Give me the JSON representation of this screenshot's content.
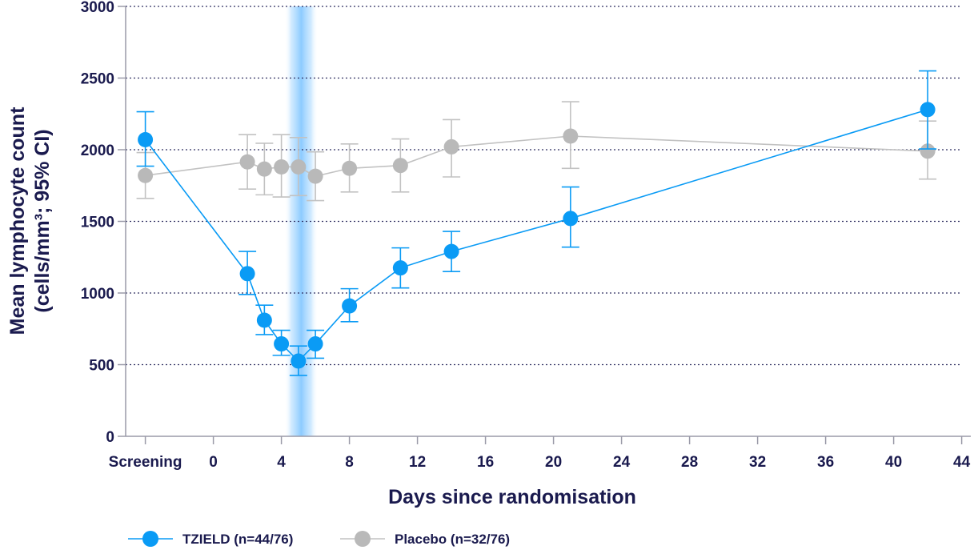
{
  "chart_data": {
    "type": "line",
    "title": "",
    "xlabel": "Days since randomisation",
    "ylabel_line1": "Mean lymphocyte count",
    "ylabel_line2": "(cells/mm³; 95% CI)",
    "xlim": [
      -6,
      44
    ],
    "ylim": [
      0,
      3000
    ],
    "grid": "horizontal-dotted",
    "highlight_band": {
      "x_center": 5,
      "x_from": 4,
      "x_to": 6,
      "color": "#9fd3ff"
    },
    "x_ticks": [
      {
        "x": -4,
        "label": "Screening"
      },
      {
        "x": 0,
        "label": "0"
      },
      {
        "x": 4,
        "label": "4"
      },
      {
        "x": 8,
        "label": "8"
      },
      {
        "x": 12,
        "label": "12"
      },
      {
        "x": 16,
        "label": "16"
      },
      {
        "x": 20,
        "label": "20"
      },
      {
        "x": 24,
        "label": "24"
      },
      {
        "x": 28,
        "label": "28"
      },
      {
        "x": 32,
        "label": "32"
      },
      {
        "x": 36,
        "label": "36"
      },
      {
        "x": 40,
        "label": "40"
      },
      {
        "x": 44,
        "label": "44"
      }
    ],
    "y_ticks": [
      {
        "y": 0,
        "label": "0"
      },
      {
        "y": 500,
        "label": "500"
      },
      {
        "y": 1000,
        "label": "1000"
      },
      {
        "y": 1500,
        "label": "1500"
      },
      {
        "y": 2000,
        "label": "2000"
      },
      {
        "y": 2500,
        "label": "2500"
      },
      {
        "y": 3000,
        "label": "3000"
      }
    ],
    "series": [
      {
        "name": "Placebo (n=32/76)",
        "color": "#b9b9b9",
        "line_color": "#c2c2c2",
        "points": [
          {
            "x": -4,
            "y": 1820,
            "lo": 1660,
            "hi": 1980
          },
          {
            "x": 2,
            "y": 1915,
            "lo": 1725,
            "hi": 2105
          },
          {
            "x": 3,
            "y": 1865,
            "lo": 1685,
            "hi": 2045
          },
          {
            "x": 4,
            "y": 1880,
            "lo": 1670,
            "hi": 2105
          },
          {
            "x": 5,
            "y": 1880,
            "lo": 1680,
            "hi": 2085
          },
          {
            "x": 6,
            "y": 1815,
            "lo": 1645,
            "hi": 1985
          },
          {
            "x": 8,
            "y": 1870,
            "lo": 1705,
            "hi": 2040
          },
          {
            "x": 11,
            "y": 1890,
            "lo": 1705,
            "hi": 2075
          },
          {
            "x": 14,
            "y": 2020,
            "lo": 1810,
            "hi": 2210
          },
          {
            "x": 21,
            "y": 2095,
            "lo": 1870,
            "hi": 2335
          },
          {
            "x": 42,
            "y": 1990,
            "lo": 1795,
            "hi": 2200
          }
        ]
      },
      {
        "name": "TZIELD (n=44/76)",
        "color": "#0a9bf5",
        "line_color": "#0a9bf5",
        "points": [
          {
            "x": -4,
            "y": 2070,
            "lo": 1885,
            "hi": 2265
          },
          {
            "x": 2,
            "y": 1135,
            "lo": 990,
            "hi": 1290
          },
          {
            "x": 3,
            "y": 810,
            "lo": 710,
            "hi": 915
          },
          {
            "x": 4,
            "y": 645,
            "lo": 565,
            "hi": 740
          },
          {
            "x": 5,
            "y": 525,
            "lo": 425,
            "hi": 630
          },
          {
            "x": 6,
            "y": 645,
            "lo": 545,
            "hi": 740
          },
          {
            "x": 8,
            "y": 910,
            "lo": 800,
            "hi": 1030
          },
          {
            "x": 11,
            "y": 1175,
            "lo": 1035,
            "hi": 1315
          },
          {
            "x": 14,
            "y": 1290,
            "lo": 1150,
            "hi": 1430
          },
          {
            "x": 21,
            "y": 1520,
            "lo": 1320,
            "hi": 1740
          },
          {
            "x": 42,
            "y": 2280,
            "lo": 2005,
            "hi": 2550
          }
        ]
      }
    ],
    "legend_order": [
      1,
      0
    ],
    "legend_position": "bottom-left"
  }
}
